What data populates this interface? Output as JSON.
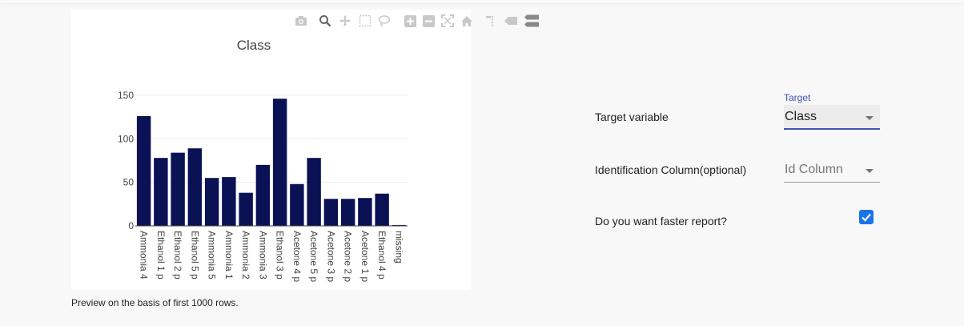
{
  "modebar": {
    "icons": [
      "camera-icon",
      "zoom-icon",
      "pan-icon",
      "box-select-icon",
      "lasso-select-icon",
      "zoom-in-icon",
      "zoom-out-icon",
      "autoscale-icon",
      "reset-axes-icon",
      "spike-lines-icon",
      "hover-closest-icon",
      "hover-compare-icon"
    ]
  },
  "chart_data": {
    "type": "bar",
    "title": "Class",
    "xlabel": "",
    "ylabel": "",
    "categories": [
      "Ammonia 4",
      "Ethanol 1 p",
      "Ethanol 2 p",
      "Ethanol 5 p",
      "Ammonia 5",
      "Ammonia 1",
      "Ammonia 2",
      "Ammonia 3",
      "Ethanol 3 p",
      "Acetone 4 p",
      "Acetone 5 p",
      "Acetone 3 p",
      "Acetone 2 p",
      "Acetone 1 p",
      "Ethanol 4 p",
      "missing"
    ],
    "values": [
      126,
      78,
      84,
      89,
      55,
      56,
      38,
      70,
      146,
      48,
      78,
      31,
      31,
      32,
      37,
      1
    ],
    "ylim": [
      0,
      160
    ],
    "yticks": [
      0,
      50,
      100,
      150
    ],
    "grid": true,
    "bar_color": "#0a1154"
  },
  "caption": "Preview on the basis of first 1000 rows.",
  "form": {
    "target_label": "Target variable",
    "target_float_label": "Target",
    "target_value": "Class",
    "id_label": "Identification Column(optional)",
    "id_placeholder": "Id Column",
    "faster_label": "Do you want faster report?",
    "faster_checked": true
  },
  "colors": {
    "accent": "#3f51b5",
    "checkbox": "#1a73e8"
  }
}
